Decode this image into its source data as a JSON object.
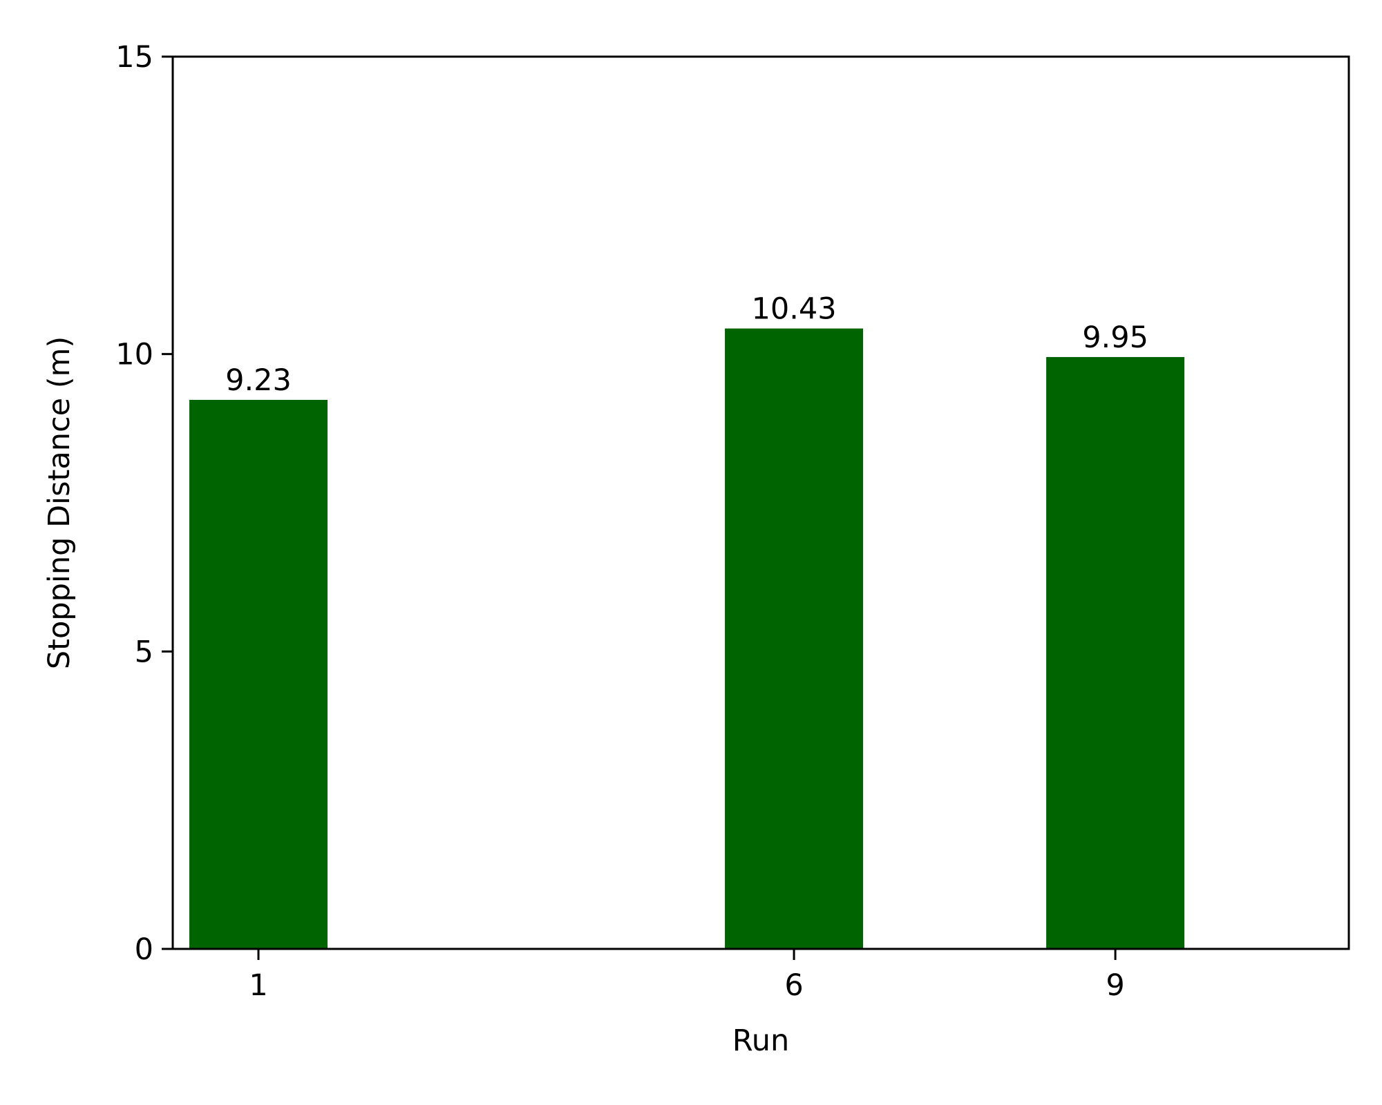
{
  "chart_data": {
    "type": "bar",
    "categories": [
      "1",
      "6",
      "9"
    ],
    "values": [
      9.23,
      10.43,
      9.95
    ],
    "data_labels": [
      "9.23",
      "10.43",
      "9.95"
    ],
    "title": "",
    "xlabel": "Run",
    "ylabel": "Stopping Distance (m)",
    "ylim": [
      0,
      15
    ],
    "yticks": [
      0,
      5,
      10,
      15
    ],
    "ytick_labels": [
      "0",
      "5",
      "10",
      "15"
    ],
    "grid": false,
    "legend": "none",
    "bar_color": "#006400"
  }
}
